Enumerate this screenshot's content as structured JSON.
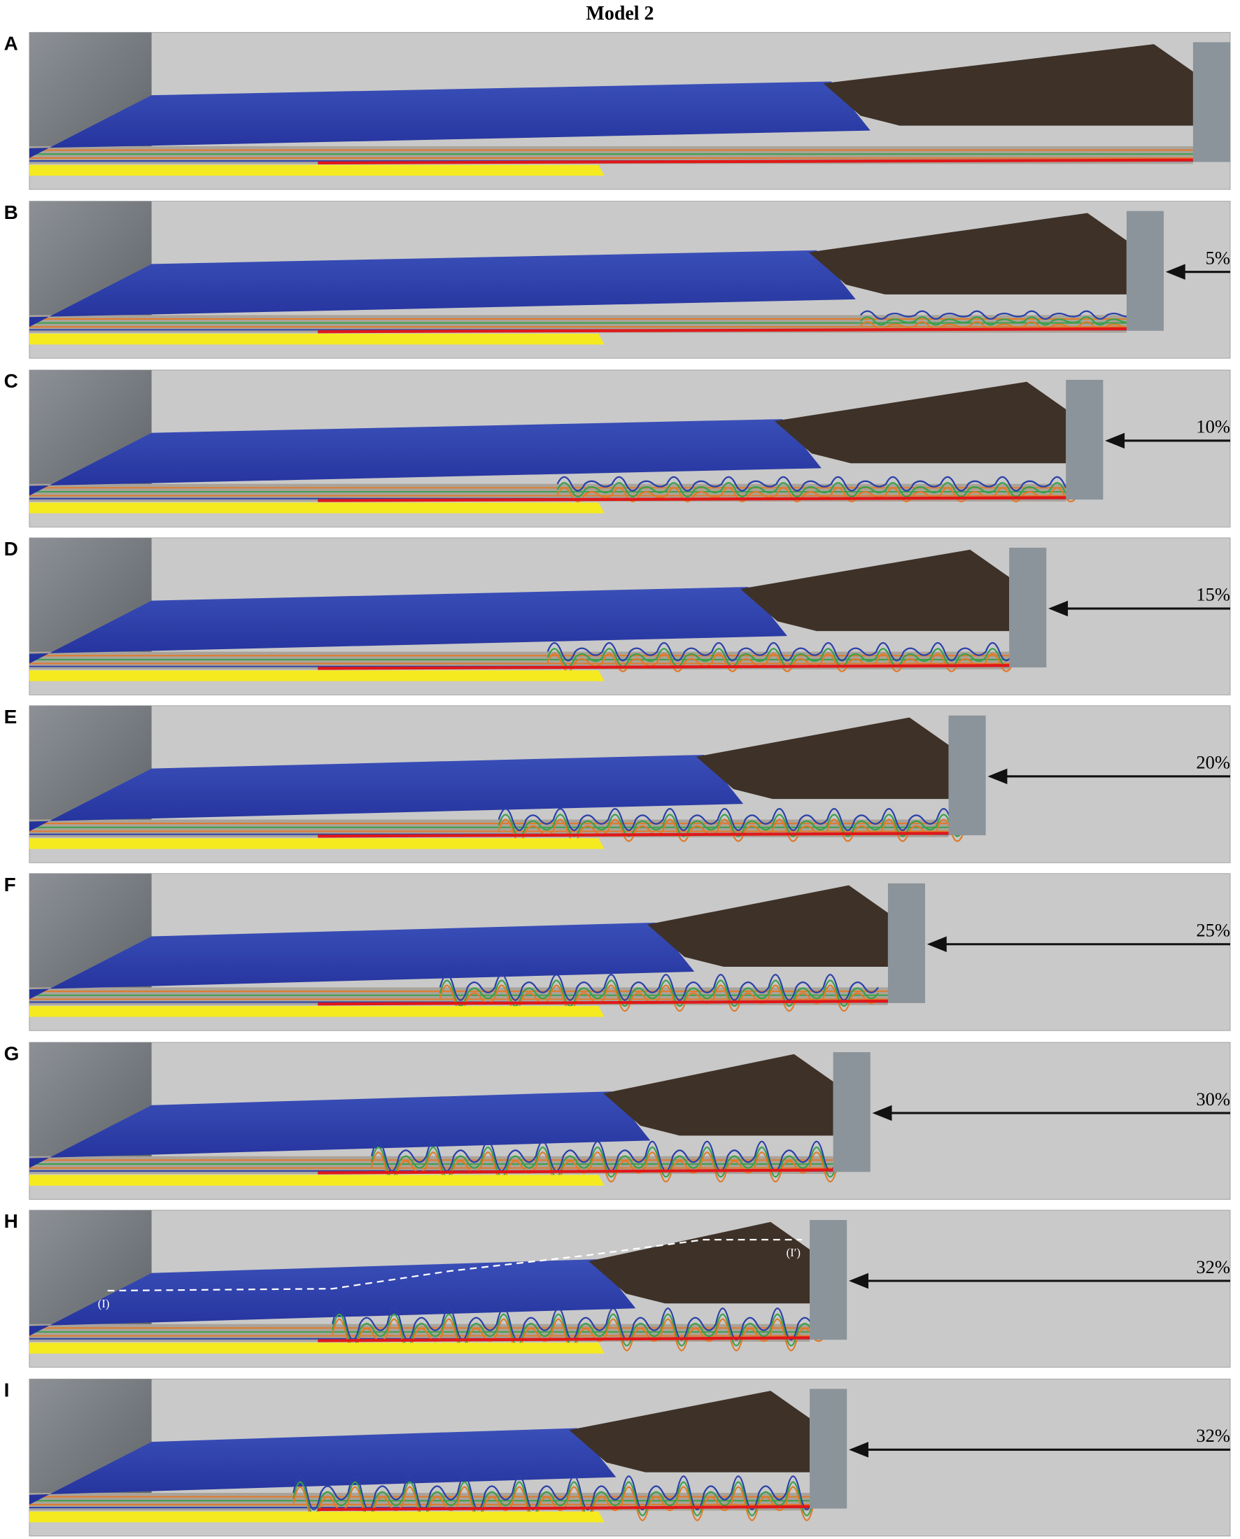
{
  "title": "Model 2",
  "panels": [
    {
      "label": "A"
    },
    {
      "label": "B",
      "shortening": "5%"
    },
    {
      "label": "C",
      "shortening": "10%"
    },
    {
      "label": "D",
      "shortening": "15%"
    },
    {
      "label": "E",
      "shortening": "20%"
    },
    {
      "label": "F",
      "shortening": "25%"
    },
    {
      "label": "G",
      "shortening": "30%"
    },
    {
      "label": "H",
      "shortening": "32%"
    },
    {
      "label": "I",
      "shortening": "32%"
    }
  ],
  "section_labels": {
    "start": "(I)",
    "end": "(I′)"
  }
}
